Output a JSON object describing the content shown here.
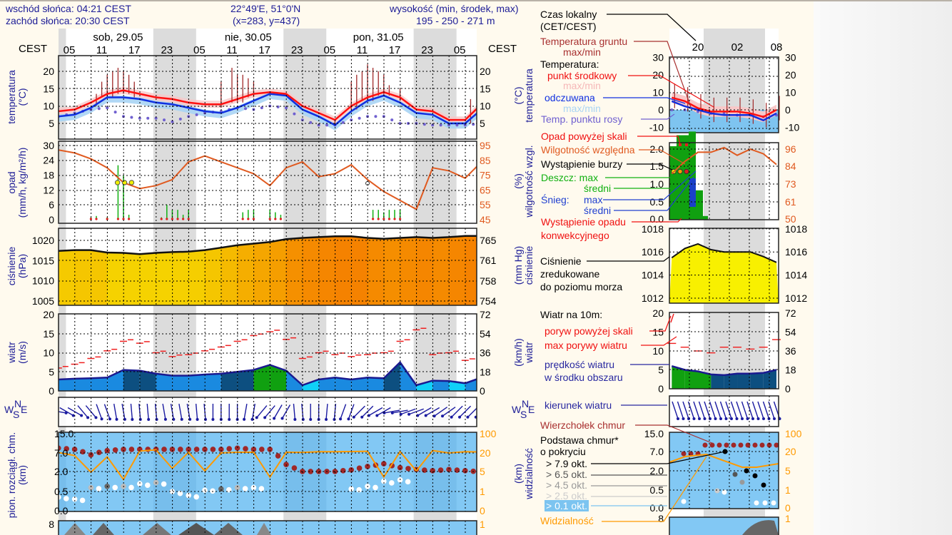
{
  "header": {
    "sunrise": "wschód słońca: 04:21 CEST",
    "sunset": "zachód słońca: 20:30 CEST",
    "coords": "22°49'E, 51°0'N",
    "grid": "(x=283,  y=437)",
    "elevation_label": "wysokość (min, środek, max)",
    "elevation": "195 - 250 - 271 m"
  },
  "time_axis": {
    "tz_left": "CEST",
    "tz_right": "CEST",
    "days": [
      {
        "label": "sob, 29.05",
        "hour": 14
      },
      {
        "label": "nie, 30.05",
        "hour": 38
      },
      {
        "label": "pon, 31.05",
        "hour": 62
      }
    ],
    "hours": [
      {
        "label": "05",
        "hour": 5
      },
      {
        "label": "11",
        "hour": 11
      },
      {
        "label": "17",
        "hour": 17
      },
      {
        "label": "23",
        "hour": 23
      },
      {
        "label": "05",
        "hour": 29
      },
      {
        "label": "11",
        "hour": 35
      },
      {
        "label": "17",
        "hour": 41
      },
      {
        "label": "23",
        "hour": 47
      },
      {
        "label": "05",
        "hour": 53
      },
      {
        "label": "11",
        "hour": 59
      },
      {
        "label": "17",
        "hour": 65
      },
      {
        "label": "23",
        "hour": 71
      },
      {
        "label": "05",
        "hour": 77
      }
    ],
    "nights": [
      [
        0,
        4.4
      ],
      [
        20.5,
        28.4
      ],
      [
        44.5,
        52.4
      ],
      [
        68.5,
        76.4
      ]
    ]
  },
  "axis_titles": {
    "temp": "temperatura",
    "temp_unit": "(°C)",
    "precip": "opad",
    "precip_unit": "(mm/h, kg/m²/h)",
    "pressure": "ciśnienie",
    "pressure_unit": "(hPa)",
    "wind": "wiatr",
    "wind_unit": "(m/s)",
    "cloud": "pion. rozciągł. chm.",
    "cloud_unit": "(km)",
    "r_temp": "temperatura",
    "r_temp_unit": "(°C)",
    "r_hum": "wilgotność wzgl.",
    "r_hum_unit": "(%)",
    "r_pres": "ciśnienie",
    "r_pres_unit": "(mm Hg)",
    "r_wind": "wiatr",
    "r_wind_unit": "(km/h)",
    "r_vis": "widzialność",
    "r_vis_unit": "(km)",
    "compass": {
      "n": "N",
      "s": "S",
      "w": "W",
      "e": "E"
    }
  },
  "colors": {
    "temp": "#ff1010",
    "felt": "#1030e0",
    "dew": "#7060d0",
    "ground": "#a02828",
    "humidity": "#e05a20",
    "rain": "#10b010",
    "cloud_top": "#a02828",
    "visibility": "#ff9a00",
    "night": "#dcdcdc",
    "cloud_bg": "#82c8f4"
  },
  "chart_data": [
    {
      "type": "line",
      "title": "temperatura",
      "ylabel": "(°C)",
      "ylim": [
        3,
        24
      ],
      "left_ticks": [
        20,
        15,
        10,
        5
      ],
      "right_ticks": [
        20,
        15,
        10,
        5
      ],
      "x_hours": [
        3,
        6,
        9,
        12,
        15,
        18,
        21,
        24,
        27,
        30,
        33,
        36,
        39,
        42,
        45,
        48,
        51,
        54,
        57,
        60,
        63,
        66,
        69,
        72,
        75,
        78,
        81
      ],
      "series": [
        {
          "name": "punkt środkowy",
          "values": [
            8.5,
            9,
            11,
            13.5,
            14.5,
            13.5,
            12.5,
            12,
            11,
            10.5,
            10.5,
            12,
            13.5,
            14,
            13.5,
            10,
            8,
            6,
            10,
            12.5,
            14,
            12.5,
            9,
            8.5,
            6,
            6,
            10.5
          ]
        },
        {
          "name": "odczuwana",
          "values": [
            7,
            7.5,
            9.5,
            12.5,
            12.5,
            12,
            11,
            10.5,
            9.5,
            8.5,
            8,
            9.5,
            11.5,
            13.5,
            13,
            9,
            7,
            4.5,
            8.5,
            11.5,
            13,
            11,
            8,
            7.5,
            5,
            5,
            9
          ]
        },
        {
          "name": "Temp. punktu rosy",
          "values": [
            7,
            8,
            9,
            9.5,
            7,
            6.5,
            6.5,
            5.5,
            7,
            8,
            8.5,
            9.5,
            9,
            10,
            9.5,
            6,
            4.5,
            4.5,
            6,
            7,
            7,
            5,
            5,
            4.5,
            4.5,
            4.5,
            5
          ]
        }
      ],
      "ground_max": [
        [
          10,
          13.5
        ],
        [
          11,
          17
        ],
        [
          12,
          19
        ],
        [
          13,
          20
        ],
        [
          14,
          21
        ],
        [
          15,
          20
        ],
        [
          16,
          19
        ],
        [
          17,
          17
        ],
        [
          33,
          17
        ],
        [
          35,
          21
        ],
        [
          36,
          19
        ],
        [
          37,
          19
        ],
        [
          38,
          18
        ],
        [
          39,
          17
        ],
        [
          54,
          6
        ],
        [
          57,
          17
        ],
        [
          58,
          19
        ],
        [
          59,
          20
        ],
        [
          60,
          22
        ],
        [
          61,
          21
        ],
        [
          62,
          20
        ],
        [
          63,
          19
        ],
        [
          64,
          16
        ],
        [
          66,
          15
        ],
        [
          79,
          12
        ]
      ]
    },
    {
      "type": "bar",
      "title": "opad / wilgotność",
      "ylabel": "(mm/h, kg/m²/h)",
      "ylim": [
        0,
        30
      ],
      "y2lim": [
        45,
        95
      ],
      "left_ticks": [
        30,
        24,
        18,
        12,
        6,
        0
      ],
      "right_ticks": [
        95,
        85,
        75,
        65,
        55,
        45
      ],
      "humidity_hours": [
        3,
        6,
        9,
        12,
        15,
        18,
        21,
        24,
        27,
        30,
        33,
        36,
        39,
        42,
        45,
        48,
        51,
        54,
        57,
        60,
        63,
        66,
        69,
        72,
        75,
        78,
        81
      ],
      "humidity": [
        92,
        90,
        86,
        80,
        70,
        66,
        68,
        72,
        84,
        88,
        84,
        80,
        76,
        68,
        80,
        84,
        74,
        76,
        82,
        72,
        64,
        58,
        52,
        80,
        78,
        73,
        84
      ],
      "rain": [
        [
          9,
          1
        ],
        [
          10,
          1.5
        ],
        [
          12,
          1
        ],
        [
          14,
          22
        ],
        [
          15,
          18
        ],
        [
          16,
          2
        ],
        [
          22,
          1
        ],
        [
          23,
          6
        ],
        [
          24,
          4
        ],
        [
          25,
          4
        ],
        [
          26,
          2
        ],
        [
          27,
          4
        ],
        [
          37,
          3
        ],
        [
          38,
          4
        ],
        [
          39,
          4
        ],
        [
          42,
          4
        ],
        [
          43,
          3
        ],
        [
          44,
          2
        ],
        [
          61,
          4
        ],
        [
          62,
          4
        ],
        [
          63,
          3
        ],
        [
          64,
          4
        ],
        [
          65,
          4
        ],
        [
          66,
          4
        ]
      ],
      "storm_hours": [
        13.9,
        15.2,
        16.5
      ],
      "storm_level": 15,
      "other_marker_hour": 60
    },
    {
      "type": "area",
      "title": "ciśnienie",
      "ylabel": "(hPa)",
      "ylim": [
        1004,
        1022
      ],
      "left_ticks": [
        1020,
        1015,
        1010,
        1005
      ],
      "right_ticks": [
        765,
        761,
        758,
        754
      ],
      "x_hours": [
        3,
        6,
        9,
        12,
        15,
        18,
        21,
        24,
        27,
        30,
        33,
        36,
        39,
        42,
        45,
        48,
        51,
        54,
        57,
        60,
        63,
        66,
        69,
        72,
        75,
        78,
        81
      ],
      "values": [
        1017.4,
        1017.6,
        1017.6,
        1017,
        1016.9,
        1016.6,
        1016.9,
        1017.1,
        1017.2,
        1017.6,
        1018.2,
        1018.8,
        1019.2,
        1019.6,
        1020.3,
        1020.6,
        1020.8,
        1021,
        1021,
        1020.6,
        1020.4,
        1020.6,
        1020.8,
        1020.6,
        1020.8,
        1021.1,
        1021.1
      ]
    },
    {
      "type": "area",
      "title": "wiatr",
      "ylabel": "(m/s)",
      "ylim": [
        0,
        20
      ],
      "left_ticks": [
        20,
        15,
        10,
        5,
        0
      ],
      "right_ticks": [
        72,
        54,
        36,
        18,
        0
      ],
      "x_hours": [
        3,
        6,
        9,
        12,
        15,
        18,
        21,
        24,
        27,
        30,
        33,
        36,
        39,
        42,
        45,
        48,
        51,
        54,
        57,
        60,
        63,
        66,
        69,
        72,
        75,
        78,
        81
      ],
      "speed": [
        3,
        3.2,
        3.3,
        3.5,
        5.5,
        5.3,
        4.5,
        4,
        4,
        4.3,
        4.5,
        5,
        5.5,
        6.8,
        5.3,
        1.5,
        3,
        3.5,
        3,
        3.5,
        3.3,
        7.5,
        1.5,
        2.7,
        2.6,
        2,
        3.5
      ],
      "gust": [
        6,
        7,
        8.5,
        10.5,
        13,
        12.5,
        10,
        9,
        9.5,
        10.5,
        11.5,
        13,
        14.5,
        15.5,
        13.5,
        8.5,
        10,
        9.5,
        9,
        9.5,
        10,
        13,
        16,
        9.5,
        10,
        8,
        7.5
      ]
    },
    {
      "type": "scatter",
      "title": "kierunek wiatru",
      "x_hours": [
        3,
        6,
        9,
        12,
        15,
        18,
        21,
        24,
        27,
        30,
        33,
        36,
        39,
        42,
        45,
        48,
        51,
        54,
        57,
        60,
        63,
        66,
        69,
        72,
        75,
        78,
        81
      ],
      "direction_deg": [
        280,
        300,
        320,
        340,
        350,
        355,
        355,
        350,
        350,
        355,
        0,
        0,
        10,
        40,
        30,
        355,
        0,
        5,
        20,
        45,
        60,
        80,
        70,
        60,
        55,
        45,
        45
      ]
    },
    {
      "type": "scatter",
      "title": "pion. rozciągł. chm.",
      "ylabel": "(km)",
      "left_ticks": [
        "15.0",
        "7.0",
        "2.0",
        "0.5",
        "0.0"
      ],
      "right_ticks": [
        "100",
        "20",
        "5",
        "1",
        "0"
      ],
      "x_hours": [
        3,
        6,
        9,
        12,
        15,
        18,
        21,
        24,
        27,
        30,
        33,
        36,
        39,
        42,
        45,
        48,
        51,
        54,
        57,
        60,
        63,
        66,
        69,
        72,
        75,
        78,
        81
      ],
      "cloud_top_km": [
        9,
        8.5,
        6.5,
        8,
        8.5,
        8.5,
        8.5,
        8.5,
        8.5,
        8.5,
        8.5,
        9,
        8.5,
        8.5,
        4,
        2.2,
        2.2,
        2.2,
        2.6,
        3.5,
        4.2,
        3.2,
        2.7,
        2.4,
        2.7,
        2.4,
        2.1
      ],
      "visibility_km": [
        22,
        18,
        5,
        17,
        3.5,
        28,
        33,
        8,
        23,
        6,
        20,
        23,
        23,
        4,
        23,
        22,
        25,
        25,
        26,
        27,
        4,
        26,
        6,
        30,
        20,
        25,
        24
      ],
      "cloud_base_km": [
        0.35,
        0.3,
        0.8,
        0.9,
        0.9,
        1.1,
        1.2,
        0.5,
        0.4,
        0.6,
        0.7,
        0.8,
        0.8,
        null,
        null,
        null,
        null,
        null,
        0.7,
        0.9,
        1.3,
        1.4,
        null,
        null,
        null,
        null,
        null
      ],
      "cloud_base_okt": [
        1,
        1,
        3,
        5,
        3,
        1,
        3,
        1,
        1,
        1,
        5,
        3,
        1,
        0,
        0,
        0,
        0,
        0,
        1,
        1,
        1,
        1,
        0,
        0,
        0,
        0,
        0
      ]
    }
  ],
  "mini_chart_data": {
    "time_labels": [
      {
        "label": "20",
        "hour": 20
      },
      {
        "label": "02",
        "hour": 26
      },
      {
        "label": "08",
        "hour": 32
      }
    ],
    "x_hours": [
      16,
      18,
      20,
      22,
      24,
      26,
      28,
      30,
      32
    ],
    "temp": {
      "ticks": [
        30,
        20,
        10,
        0,
        -10
      ],
      "mid": [
        7,
        5,
        1,
        -1,
        -1,
        -1,
        -2,
        -4,
        0
      ],
      "felt": [
        5,
        2,
        0,
        -2,
        -3,
        -3,
        -3,
        -6,
        -2
      ],
      "dew": [
        0,
        0,
        -1,
        -2,
        -2,
        -3,
        -3,
        -4,
        -3
      ]
    },
    "precip": {
      "left_ticks": [
        "2.0",
        "1.5",
        "1.0",
        "0.5",
        "0.0"
      ],
      "right_ticks": [
        96,
        84,
        73,
        61,
        50
      ],
      "humidity": [
        80,
        88,
        94,
        94,
        97,
        92,
        96,
        93,
        86
      ]
    },
    "pressure": {
      "ticks": [
        1018,
        1016,
        1014,
        1012
      ],
      "values": [
        1015.5,
        1016.3,
        1016.7,
        1016.2,
        1016,
        1016,
        1016,
        1015.6,
        1015.1
      ]
    },
    "wind": {
      "left_ticks": [
        20,
        15,
        10,
        5,
        0
      ],
      "right_ticks": [
        72,
        54,
        36,
        18,
        0
      ],
      "speed": [
        6,
        5,
        4.6,
        3.8,
        3.6,
        4,
        4,
        4.2,
        5
      ],
      "gust": [
        12,
        11,
        10,
        9.5,
        11,
        11,
        10.5,
        11,
        13
      ]
    },
    "cloud": {
      "left_ticks": [
        "15.0",
        "7.0",
        "2.0",
        "0.5",
        "0.0"
      ],
      "right_ticks": [
        "100",
        "20",
        "5",
        "1",
        "0"
      ],
      "bottom_tick": "8",
      "bottom_right_tick": "1"
    }
  },
  "legend": {
    "local_time": "Czas lokalny",
    "local_time_tz": "(CET/CEST)",
    "ground_temp": "Temperatura gruntu",
    "ground_temp_mm": "max/min",
    "temperature": "Temperatura:",
    "midpoint": "punkt środkowy",
    "midpoint_mm": "max/min",
    "felt": "odczuwana",
    "felt_mm": "max/min",
    "dew": "Temp. punktu rosy",
    "precip_over": "Opad powyżej skali",
    "humidity": "Wilgotność względna",
    "storm": "Wystąpienie burzy",
    "rain": "Deszcz: max",
    "rain_avg": "średni",
    "snow": "Śnieg:",
    "snow_max": "max",
    "snow_avg": "średni",
    "conv": "Wystąpienie opadu",
    "conv2": "konwekcyjnego",
    "pres1": "Ciśnienie",
    "pres2": "zredukowane",
    "pres3": "do poziomu morza",
    "wind_title": "Wiatr na 10m:",
    "gust_over": "poryw powyżej skali",
    "gust_max": "max porywy wiatru",
    "speed1": "prędkość wiatru",
    "speed2": "w środku obszaru",
    "direction": "kierunek wiatru",
    "cloud_top": "Wierzchołek chmur",
    "cloud_base": "Podstawa chmur*",
    "cloud_base2": "o pokryciu",
    "okt79": "> 7.9 okt.",
    "okt65": "> 6.5 okt.",
    "okt45": "> 4.5 okt.",
    "okt25": "> 2.5 okt.",
    "okt01": "> 0.1 okt.",
    "visibility": "Widzialność",
    "left_bottom_tick": "8",
    "right_bottom_tick": "1"
  }
}
